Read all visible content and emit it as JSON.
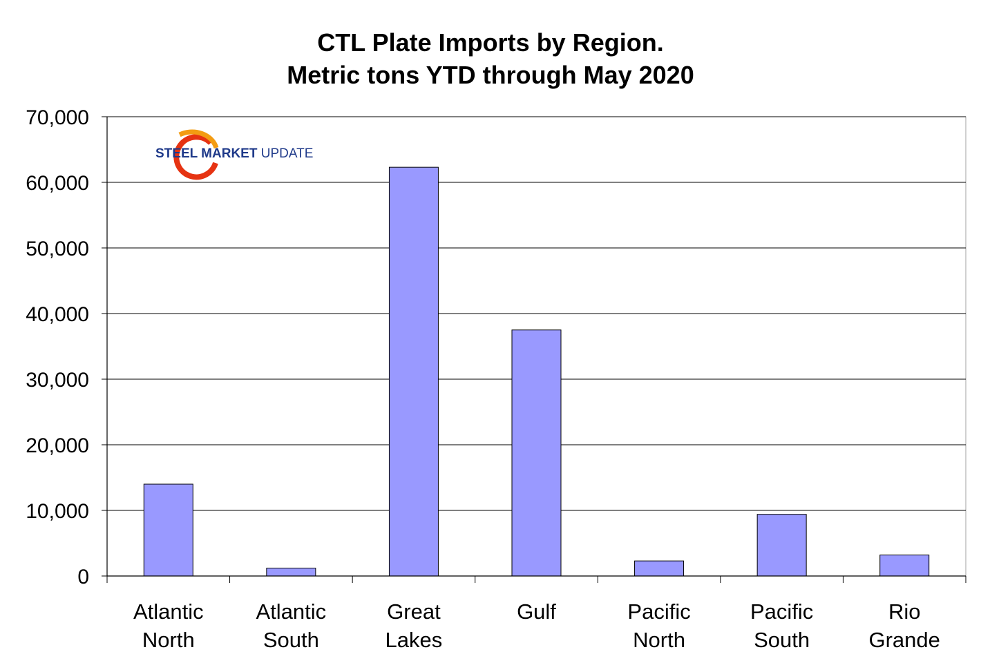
{
  "chart_data": {
    "type": "bar",
    "title": [
      "CTL Plate Imports by Region.",
      "Metric tons YTD through May 2020"
    ],
    "categories": [
      [
        "Atlantic",
        "North"
      ],
      [
        "Atlantic",
        "South"
      ],
      [
        "Great",
        "Lakes"
      ],
      [
        "Gulf"
      ],
      [
        "Pacific",
        "North"
      ],
      [
        "Pacific",
        "South"
      ],
      [
        "Rio",
        "Grande"
      ]
    ],
    "values": [
      14000,
      1200,
      62300,
      37500,
      2300,
      9400,
      3200
    ],
    "ylim": [
      0,
      70000
    ],
    "yticks": [
      "0",
      "10,000",
      "20,000",
      "30,000",
      "40,000",
      "50,000",
      "60,000",
      "70,000"
    ],
    "grid": true,
    "colors": {
      "bar": "#9999ff",
      "bar_edge": "#000000",
      "grid": "#000000",
      "logo_blue": "#1f3a8a",
      "logo_red": "#e63312",
      "logo_orange": "#f39c12"
    }
  },
  "logo": {
    "brand_bold": "STEEL",
    "brand_rest": " MARKET",
    "brand_light": " UPDATE",
    "icon": "swoosh-logo-icon"
  }
}
